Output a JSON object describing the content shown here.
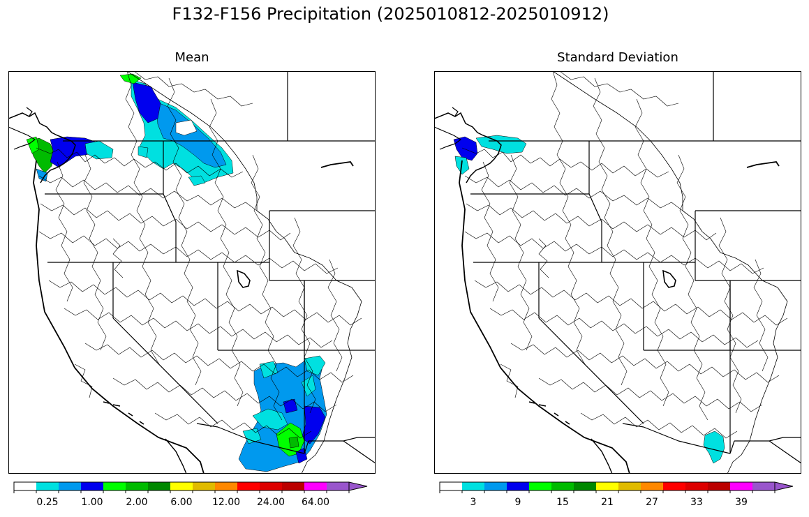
{
  "title": "F132-F156 Precipitation (2025010812-2025010912)",
  "panels": [
    {
      "title": "Mean",
      "legend": {
        "colors": [
          "#ffffff",
          "#00e0e0",
          "#0099ee",
          "#0000ee",
          "#00ff00",
          "#00bb00",
          "#008800",
          "#ffff00",
          "#e0bb00",
          "#ff8800",
          "#ff0000",
          "#dd0000",
          "#bb0000",
          "#ff00ff",
          "#9955cc"
        ],
        "tick_labels": [
          "0.25",
          "1.00",
          "2.00",
          "6.00",
          "12.00",
          "24.00",
          "64.00"
        ],
        "tick_positions": [
          1,
          3,
          5,
          7,
          9,
          11,
          13
        ],
        "extend": "max"
      },
      "shaded_regions": [
        {
          "region": "Washington coast and Olympic Peninsula",
          "category": "2.00 - 6.00",
          "color": "#00ff00"
        },
        {
          "region": "Puget Sound / northwest Washington",
          "category": "1.00 - 2.00",
          "color": "#0000ee"
        },
        {
          "region": "southern British Columbia interior",
          "category": "0.25 - 2.00",
          "color": "#0099ee"
        },
        {
          "region": "southeast Arizona / New Mexico border",
          "category": "0.25 - 6.00",
          "color": "#0099ee"
        }
      ]
    },
    {
      "title": "Standard Deviation",
      "legend": {
        "colors": [
          "#ffffff",
          "#00e0e0",
          "#0099ee",
          "#0000ee",
          "#00ff00",
          "#00bb00",
          "#008800",
          "#ffff00",
          "#e0bb00",
          "#ff8800",
          "#ff0000",
          "#dd0000",
          "#bb0000",
          "#ff00ff",
          "#9955cc"
        ],
        "tick_labels": [
          "3",
          "9",
          "15",
          "21",
          "27",
          "33",
          "39"
        ],
        "tick_positions": [
          1,
          3,
          5,
          7,
          9,
          11,
          13
        ],
        "extend": "max"
      },
      "shaded_regions": [
        {
          "region": "Puget Sound / northwest Washington",
          "category": "6 - 9",
          "color": "#0000ee"
        },
        {
          "region": "southern British Columbia coast",
          "category": "0 - 6",
          "color": "#00e0e0"
        },
        {
          "region": "southeast Arizona",
          "category": "3 - 6",
          "color": "#00e0e0"
        }
      ]
    }
  ]
}
